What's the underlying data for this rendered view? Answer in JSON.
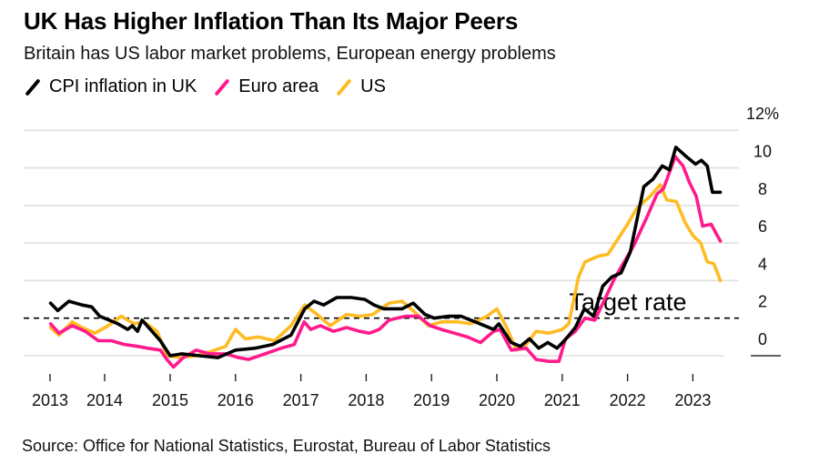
{
  "title": "UK Has Higher Inflation Than Its Major Peers",
  "subtitle": "Britain has US labor market problems, European energy problems",
  "source": "Source: Office for National Statistics, Eurostat, Bureau of Labor Statistics",
  "legend": [
    {
      "label": "CPI inflation in UK",
      "color": "#000000"
    },
    {
      "label": "Euro area",
      "color": "#ff1a8c"
    },
    {
      "label": "US",
      "color": "#ffbb22"
    }
  ],
  "chart_data": {
    "type": "line",
    "title": "UK Has Higher Inflation Than Its Major Peers",
    "subtitle": "Britain has US labor market problems, European energy problems",
    "xlabel": "",
    "ylabel": "",
    "x_ticks": [
      "2013",
      "2014",
      "2015",
      "2016",
      "2017",
      "2018",
      "2019",
      "2020",
      "2021",
      "2022",
      "2023"
    ],
    "y_ticks": [
      "12%",
      "10",
      "8",
      "6",
      "4",
      "2",
      "0"
    ],
    "y_tick_values": [
      12,
      10,
      8,
      6,
      4,
      2,
      0
    ],
    "ylim": [
      -1,
      12
    ],
    "xlim": [
      2013.0,
      2023.5
    ],
    "grid": true,
    "legend_position": "top-left",
    "annotations": [
      {
        "text": "Target rate",
        "value": 2,
        "style": "dashed-line"
      }
    ],
    "series": [
      {
        "name": "CPI inflation in UK",
        "color": "#000000",
        "points": [
          [
            2013.17,
            2.8
          ],
          [
            2013.28,
            2.4
          ],
          [
            2013.45,
            2.9
          ],
          [
            2013.65,
            2.7
          ],
          [
            2013.8,
            2.6
          ],
          [
            2013.92,
            2.1
          ],
          [
            2014.2,
            1.7
          ],
          [
            2014.35,
            1.4
          ],
          [
            2014.42,
            1.6
          ],
          [
            2014.5,
            1.3
          ],
          [
            2014.57,
            1.9
          ],
          [
            2014.85,
            0.8
          ],
          [
            2015.0,
            0.0
          ],
          [
            2015.18,
            0.1
          ],
          [
            2015.45,
            0.0
          ],
          [
            2015.73,
            -0.1
          ],
          [
            2016.0,
            0.3
          ],
          [
            2016.3,
            0.4
          ],
          [
            2016.57,
            0.6
          ],
          [
            2016.85,
            1.1
          ],
          [
            2017.06,
            2.5
          ],
          [
            2017.2,
            2.9
          ],
          [
            2017.35,
            2.7
          ],
          [
            2017.55,
            3.1
          ],
          [
            2017.77,
            3.1
          ],
          [
            2017.98,
            3.0
          ],
          [
            2018.12,
            2.7
          ],
          [
            2018.27,
            2.5
          ],
          [
            2018.55,
            2.5
          ],
          [
            2018.72,
            2.8
          ],
          [
            2018.9,
            2.2
          ],
          [
            2019.04,
            2.0
          ],
          [
            2019.25,
            2.1
          ],
          [
            2019.45,
            2.1
          ],
          [
            2019.67,
            1.8
          ],
          [
            2019.95,
            1.4
          ],
          [
            2020.03,
            1.7
          ],
          [
            2020.22,
            0.7
          ],
          [
            2020.36,
            0.5
          ],
          [
            2020.5,
            0.9
          ],
          [
            2020.64,
            0.4
          ],
          [
            2020.78,
            0.7
          ],
          [
            2020.92,
            0.4
          ],
          [
            2021.06,
            0.9
          ],
          [
            2021.2,
            1.5
          ],
          [
            2021.34,
            2.5
          ],
          [
            2021.48,
            2.1
          ],
          [
            2021.62,
            3.7
          ],
          [
            2021.76,
            4.2
          ],
          [
            2021.9,
            4.4
          ],
          [
            2022.04,
            5.5
          ],
          [
            2022.25,
            9.0
          ],
          [
            2022.39,
            9.4
          ],
          [
            2022.53,
            10.1
          ],
          [
            2022.64,
            9.9
          ],
          [
            2022.74,
            11.1
          ],
          [
            2022.9,
            10.6
          ],
          [
            2023.04,
            10.2
          ],
          [
            2023.13,
            10.4
          ],
          [
            2023.22,
            10.1
          ],
          [
            2023.3,
            8.7
          ],
          [
            2023.42,
            8.7
          ]
        ]
      },
      {
        "name": "Euro area",
        "color": "#ff1a8c",
        "points": [
          [
            2013.17,
            1.7
          ],
          [
            2013.3,
            1.2
          ],
          [
            2013.5,
            1.6
          ],
          [
            2013.7,
            1.3
          ],
          [
            2013.9,
            0.8
          ],
          [
            2014.1,
            0.8
          ],
          [
            2014.3,
            0.6
          ],
          [
            2014.5,
            0.5
          ],
          [
            2014.65,
            0.4
          ],
          [
            2014.85,
            0.3
          ],
          [
            2014.95,
            -0.2
          ],
          [
            2015.05,
            -0.6
          ],
          [
            2015.2,
            -0.1
          ],
          [
            2015.4,
            0.3
          ],
          [
            2015.6,
            0.1
          ],
          [
            2015.85,
            0.1
          ],
          [
            2016.05,
            -0.1
          ],
          [
            2016.2,
            -0.2
          ],
          [
            2016.45,
            0.1
          ],
          [
            2016.7,
            0.4
          ],
          [
            2016.9,
            0.6
          ],
          [
            2017.05,
            1.8
          ],
          [
            2017.15,
            1.4
          ],
          [
            2017.3,
            1.6
          ],
          [
            2017.5,
            1.3
          ],
          [
            2017.7,
            1.5
          ],
          [
            2017.9,
            1.3
          ],
          [
            2018.05,
            1.2
          ],
          [
            2018.2,
            1.4
          ],
          [
            2018.35,
            1.9
          ],
          [
            2018.6,
            2.1
          ],
          [
            2018.8,
            2.1
          ],
          [
            2018.98,
            1.6
          ],
          [
            2019.15,
            1.4
          ],
          [
            2019.35,
            1.2
          ],
          [
            2019.55,
            1.0
          ],
          [
            2019.75,
            0.7
          ],
          [
            2019.95,
            1.3
          ],
          [
            2020.05,
            1.4
          ],
          [
            2020.22,
            0.3
          ],
          [
            2020.45,
            0.4
          ],
          [
            2020.6,
            -0.2
          ],
          [
            2020.8,
            -0.3
          ],
          [
            2020.95,
            -0.3
          ],
          [
            2021.05,
            0.9
          ],
          [
            2021.2,
            1.3
          ],
          [
            2021.35,
            2.0
          ],
          [
            2021.5,
            1.9
          ],
          [
            2021.65,
            3.0
          ],
          [
            2021.8,
            4.1
          ],
          [
            2021.95,
            5.0
          ],
          [
            2022.1,
            5.9
          ],
          [
            2022.3,
            7.4
          ],
          [
            2022.45,
            8.6
          ],
          [
            2022.55,
            8.9
          ],
          [
            2022.73,
            10.6
          ],
          [
            2022.85,
            10.1
          ],
          [
            2022.95,
            9.2
          ],
          [
            2023.05,
            8.5
          ],
          [
            2023.15,
            6.9
          ],
          [
            2023.28,
            7.0
          ],
          [
            2023.42,
            6.1
          ]
        ]
      },
      {
        "name": "US",
        "color": "#ffbb22",
        "points": [
          [
            2013.17,
            1.5
          ],
          [
            2013.3,
            1.1
          ],
          [
            2013.5,
            1.8
          ],
          [
            2013.65,
            1.5
          ],
          [
            2013.85,
            1.2
          ],
          [
            2014.05,
            1.6
          ],
          [
            2014.25,
            2.1
          ],
          [
            2014.45,
            1.7
          ],
          [
            2014.6,
            1.8
          ],
          [
            2014.8,
            1.3
          ],
          [
            2014.95,
            0.0
          ],
          [
            2015.15,
            -0.1
          ],
          [
            2015.4,
            0.0
          ],
          [
            2015.6,
            0.2
          ],
          [
            2015.85,
            0.5
          ],
          [
            2016.0,
            1.4
          ],
          [
            2016.15,
            0.9
          ],
          [
            2016.35,
            1.0
          ],
          [
            2016.6,
            0.8
          ],
          [
            2016.85,
            1.6
          ],
          [
            2017.06,
            2.7
          ],
          [
            2017.25,
            2.2
          ],
          [
            2017.45,
            1.6
          ],
          [
            2017.7,
            2.2
          ],
          [
            2017.9,
            2.1
          ],
          [
            2018.1,
            2.2
          ],
          [
            2018.35,
            2.8
          ],
          [
            2018.55,
            2.9
          ],
          [
            2018.75,
            2.3
          ],
          [
            2018.95,
            1.6
          ],
          [
            2019.15,
            1.8
          ],
          [
            2019.4,
            1.8
          ],
          [
            2019.6,
            1.7
          ],
          [
            2019.85,
            2.1
          ],
          [
            2020.0,
            2.5
          ],
          [
            2020.15,
            1.5
          ],
          [
            2020.3,
            0.3
          ],
          [
            2020.45,
            0.6
          ],
          [
            2020.6,
            1.3
          ],
          [
            2020.8,
            1.2
          ],
          [
            2021.0,
            1.4
          ],
          [
            2021.1,
            1.7
          ],
          [
            2021.25,
            4.2
          ],
          [
            2021.35,
            5.0
          ],
          [
            2021.55,
            5.3
          ],
          [
            2021.7,
            5.4
          ],
          [
            2021.85,
            6.2
          ],
          [
            2022.0,
            7.0
          ],
          [
            2022.15,
            7.9
          ],
          [
            2022.35,
            8.5
          ],
          [
            2022.5,
            9.1
          ],
          [
            2022.6,
            8.3
          ],
          [
            2022.75,
            8.2
          ],
          [
            2022.88,
            7.1
          ],
          [
            2023.0,
            6.4
          ],
          [
            2023.12,
            6.0
          ],
          [
            2023.22,
            5.0
          ],
          [
            2023.32,
            4.9
          ],
          [
            2023.42,
            4.0
          ]
        ]
      }
    ]
  }
}
